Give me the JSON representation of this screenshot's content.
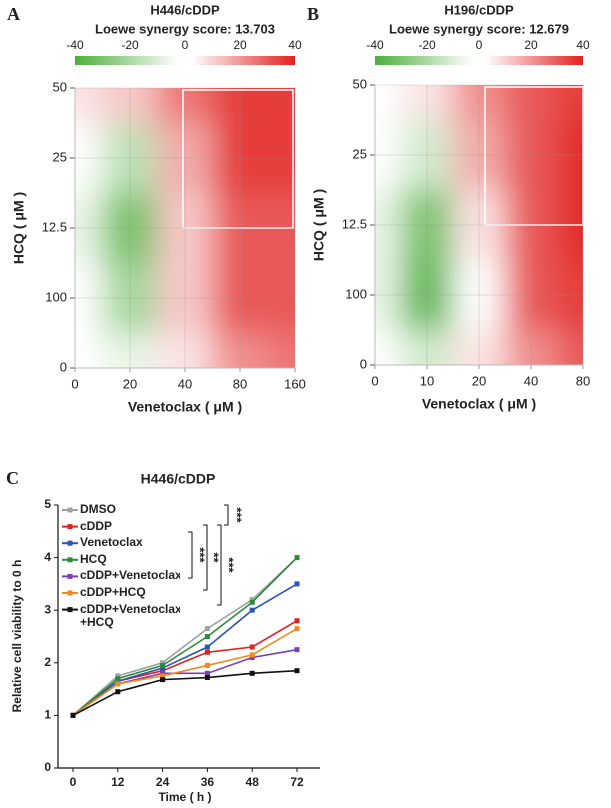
{
  "chart_data": [
    {
      "type": "heatmap",
      "panel": "A",
      "title": "H446/cDDP",
      "subtitle": "Loewe synergy score: 13.703",
      "xlabel": "Venetoclax ( μM )",
      "ylabel": "HCQ ( μM )",
      "categories": [
        "0",
        "20",
        "40",
        "80",
        "160"
      ],
      "y_categories": [
        "0",
        "100",
        "12.5",
        "25",
        "50"
      ],
      "values": [
        [
          0,
          -5,
          5,
          20,
          25
        ],
        [
          0,
          -20,
          10,
          30,
          30
        ],
        [
          -5,
          -30,
          10,
          30,
          30
        ],
        [
          0,
          -15,
          15,
          35,
          35
        ],
        [
          5,
          10,
          25,
          35,
          35
        ]
      ],
      "zlim": [
        -40,
        40
      ],
      "zticks": [
        -40,
        -20,
        0,
        20,
        40
      ],
      "colors": {
        "negative": "#4caf3a",
        "positive": "#e0201e"
      }
    },
    {
      "type": "heatmap",
      "panel": "B",
      "title": "H196/cDDP",
      "subtitle": "Loewe synergy score: 12.679",
      "xlabel": "Venetoclax ( μM )",
      "ylabel": "HCQ ( μM )",
      "categories": [
        "0",
        "10",
        "20",
        "40",
        "80"
      ],
      "y_categories": [
        "0",
        "100",
        "12.5",
        "25",
        "50"
      ],
      "values": [
        [
          0,
          -10,
          5,
          20,
          30
        ],
        [
          -5,
          -35,
          0,
          30,
          35
        ],
        [
          -5,
          -30,
          5,
          30,
          38
        ],
        [
          0,
          -10,
          15,
          30,
          38
        ],
        [
          0,
          5,
          20,
          30,
          35
        ]
      ],
      "zlim": [
        -40,
        40
      ],
      "zticks": [
        -40,
        -20,
        0,
        20,
        40
      ],
      "colors": {
        "negative": "#4caf3a",
        "positive": "#e0201e"
      }
    },
    {
      "type": "line",
      "panel": "C",
      "title": "H446/cDDP",
      "xlabel": "Time ( h )",
      "ylabel": "Relative cell viability to 0 h",
      "categories": [
        "0",
        "12",
        "24",
        "36",
        "48",
        "72"
      ],
      "ylim": [
        0,
        5
      ],
      "yticks": [
        0,
        1,
        2,
        3,
        4,
        5
      ],
      "series": [
        {
          "name": "DMSO",
          "color": "#a0a0a0",
          "values": [
            1.0,
            1.75,
            2.0,
            2.65,
            3.2,
            4.0
          ]
        },
        {
          "name": "cDDP",
          "color": "#e02020",
          "values": [
            1.0,
            1.65,
            1.85,
            2.2,
            2.3,
            2.8
          ]
        },
        {
          "name": "Venetoclax",
          "color": "#2a55b5",
          "values": [
            1.0,
            1.65,
            1.9,
            2.3,
            3.0,
            3.5
          ]
        },
        {
          "name": "HCQ",
          "color": "#2e8b3e",
          "values": [
            1.0,
            1.7,
            1.95,
            2.5,
            3.15,
            4.0
          ]
        },
        {
          "name": "cDDP+Venetoclax",
          "color": "#7b3fb5",
          "values": [
            1.0,
            1.6,
            1.8,
            1.8,
            2.1,
            2.25
          ]
        },
        {
          "name": "cDDP+HCQ",
          "color": "#f08a1c",
          "values": [
            1.0,
            1.6,
            1.75,
            1.95,
            2.15,
            2.65
          ]
        },
        {
          "name": "cDDP+Venetoclax +HCQ",
          "color": "#111111",
          "values": [
            1.0,
            1.45,
            1.68,
            1.72,
            1.8,
            1.85
          ]
        }
      ],
      "annotations": [
        "***",
        "***",
        "**",
        "***"
      ]
    }
  ]
}
